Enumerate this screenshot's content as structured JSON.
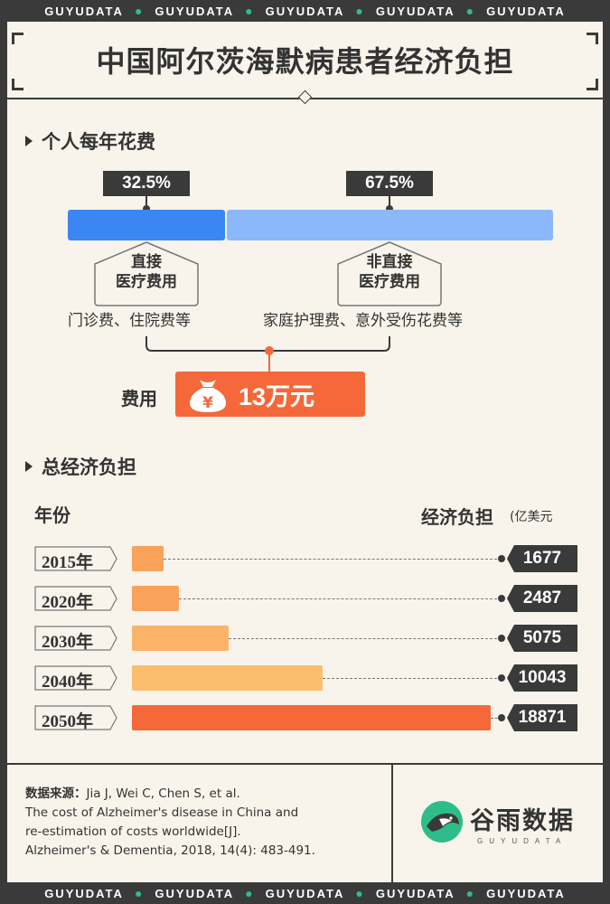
{
  "watermark": {
    "text": "GUYUDATA",
    "repeat": 5
  },
  "title": "中国阿尔茨海默病患者经济负担",
  "section1": {
    "title": "个人每年花费",
    "direct": {
      "pct": "32.5%",
      "label_line1": "直接",
      "label_line2": "医疗费用",
      "desc": "门诊费、住院费等"
    },
    "indirect": {
      "pct": "67.5%",
      "label_line1": "非直接",
      "label_line2": "医疗费用",
      "desc": "家庭护理费、意外受伤花费等"
    },
    "cost_label": "费用",
    "cost_value": "13万元",
    "cost_icon": "money-bag-icon"
  },
  "section2": {
    "title": "总经济负担",
    "col_year": "年份",
    "col_burden": "经济负担",
    "col_unit": "(亿美元"
  },
  "chart_data": {
    "type": "bar",
    "orientation": "horizontal",
    "categories": [
      "2015年",
      "2020年",
      "2030年",
      "2040年",
      "2050年"
    ],
    "values": [
      1677,
      2487,
      5075,
      10043,
      18871
    ],
    "value_labels": [
      "1677",
      "2487",
      "5075",
      "10043",
      "18871"
    ],
    "xlim": [
      0,
      19000
    ],
    "colors": [
      "#f9a25a",
      "#f9a25a",
      "#fbb36a",
      "#fcbd6f",
      "#f4683a"
    ],
    "title": "总经济负担",
    "xlabel": "经济负担(亿美元",
    "ylabel": "年份"
  },
  "split_chart": {
    "type": "bar",
    "stacked": true,
    "values_pct": [
      32.5,
      67.5
    ],
    "colors": [
      "#3a87f4",
      "#8bb8fb"
    ]
  },
  "source": {
    "label": "数据来源：",
    "line1": "Jia J, Wei C, Chen S, et al.",
    "line2": "The cost of Alzheimer's disease in China and",
    "line3": "re‐estimation of costs worldwide[J].",
    "line4": "Alzheimer's & Dementia, 2018, 14(4): 483-491."
  },
  "logo": {
    "name": "谷雨数据",
    "sub": "GUYUDATA",
    "icon": "guyu-bird-logo-icon"
  }
}
